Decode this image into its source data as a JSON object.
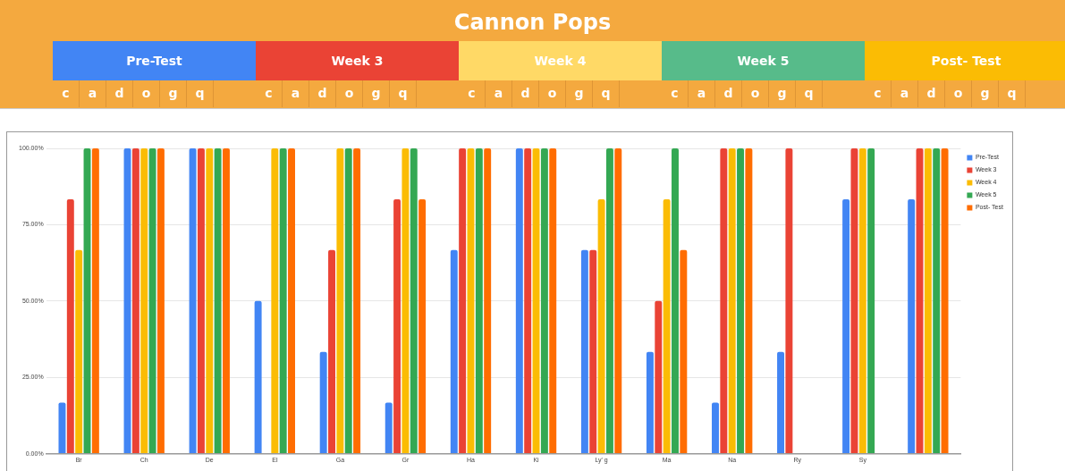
{
  "chart_data": [
    {
      "type": "other",
      "title": "Cannon Pops",
      "categories": [
        "Pre-Test",
        "Week 3",
        "Week 4",
        "Week 5",
        "Post- Test"
      ],
      "colors": [
        "#4285f4",
        "#ea4335",
        "#ffd966",
        "#57bb8a",
        "#fbbc04"
      ],
      "annotations": [
        "c",
        "a",
        "d",
        "o",
        "g",
        "q",
        "c",
        "a",
        "d",
        "o",
        "g",
        "q",
        "c",
        "a",
        "d",
        "o",
        "g",
        "q",
        "c",
        "a",
        "d",
        "o",
        "g",
        "q",
        "c",
        "a",
        "d",
        "o",
        "g",
        "q"
      ]
    },
    {
      "type": "bar",
      "categories": [
        "Br",
        "Ch",
        "De",
        "El",
        "Ga",
        "Gr",
        "Ha",
        "Ki",
        "Ly' g",
        "Ma",
        "Na",
        "Ry",
        "Sy",
        null
      ],
      "series": [
        {
          "name": "Pre-Test",
          "color": "#4285f4",
          "values": [
            16.7,
            100,
            100,
            50,
            33.3,
            16.7,
            66.7,
            100,
            66.7,
            33.3,
            16.7,
            33.3,
            83.3,
            83.3
          ]
        },
        {
          "name": "Week 3",
          "color": "#ea4335",
          "values": [
            83.3,
            100,
            100,
            0,
            66.7,
            83.3,
            100,
            100,
            66.7,
            50,
            100,
            100,
            100,
            100
          ]
        },
        {
          "name": "Week 4",
          "color": "#fbbc04",
          "values": [
            66.7,
            100,
            100,
            100,
            100,
            100,
            100,
            100,
            83.3,
            83.3,
            100,
            0,
            100,
            100
          ]
        },
        {
          "name": "Week 5",
          "color": "#34a853",
          "values": [
            100,
            100,
            100,
            100,
            100,
            100,
            100,
            100,
            100,
            100,
            100,
            0,
            100,
            100
          ]
        },
        {
          "name": "Post- Test",
          "color": "#ff6d01",
          "values": [
            100,
            100,
            100,
            100,
            100,
            83.3,
            100,
            100,
            100,
            66.7,
            100,
            0,
            0,
            100
          ]
        }
      ],
      "ylim": [
        0,
        100
      ],
      "yticks": [
        {
          "value": 0,
          "label": "0.00%"
        },
        {
          "value": 25,
          "label": "25.00%"
        },
        {
          "value": 50,
          "label": "50.00%"
        },
        {
          "value": 75,
          "label": "75.00%"
        },
        {
          "value": 100,
          "label": "100.00%"
        }
      ],
      "grid": "y",
      "legend": "right"
    }
  ]
}
